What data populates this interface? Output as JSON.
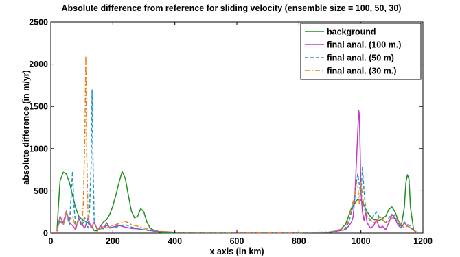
{
  "chart_data": {
    "type": "line",
    "title": "Absolute difference from reference for sliding velocity (ensemble size = 100, 50, 30)",
    "xlabel": "x axis (in km)",
    "ylabel": "absolute difference (in m/yr)",
    "xlim": [
      0,
      1200
    ],
    "ylim": [
      0,
      2500
    ],
    "xticks": [
      "0",
      "200",
      "400",
      "600",
      "800",
      "1000",
      "1200"
    ],
    "yticks": [
      "0",
      "500",
      "1000",
      "1500",
      "2000",
      "2500"
    ],
    "legend_position": "top-right",
    "grid": false,
    "series": [
      {
        "name": "background",
        "color": "#1f8f1f",
        "dash": "solid",
        "x": [
          20,
          25,
          30,
          40,
          50,
          60,
          70,
          80,
          90,
          100,
          110,
          120,
          130,
          140,
          150,
          160,
          170,
          180,
          190,
          200,
          210,
          220,
          230,
          240,
          250,
          260,
          270,
          280,
          290,
          300,
          310,
          320,
          330,
          340,
          350,
          360,
          400,
          600,
          800,
          900,
          930,
          950,
          960,
          970,
          980,
          990,
          1000,
          1010,
          1020,
          1030,
          1040,
          1060,
          1080,
          1090,
          1100,
          1110,
          1120,
          1130,
          1140,
          1145,
          1150,
          1155,
          1160,
          1170,
          1180
        ],
        "y": [
          30,
          350,
          620,
          720,
          700,
          600,
          450,
          300,
          200,
          160,
          140,
          120,
          90,
          30,
          25,
          80,
          130,
          160,
          220,
          320,
          450,
          600,
          730,
          650,
          450,
          260,
          180,
          200,
          290,
          250,
          130,
          60,
          40,
          20,
          10,
          5,
          4,
          4,
          4,
          8,
          30,
          100,
          200,
          300,
          350,
          400,
          390,
          330,
          250,
          200,
          160,
          150,
          200,
          280,
          310,
          250,
          150,
          80,
          300,
          600,
          690,
          640,
          300,
          40,
          5
        ]
      },
      {
        "name": "final anal. (100 m.)",
        "color": "#c836c8",
        "dash": "solid",
        "x": [
          20,
          30,
          40,
          50,
          60,
          70,
          80,
          90,
          100,
          110,
          120,
          130,
          140,
          150,
          160,
          170,
          180,
          190,
          200,
          220,
          240,
          260,
          280,
          300,
          320,
          340,
          400,
          600,
          800,
          900,
          950,
          960,
          970,
          975,
          980,
          985,
          990,
          993,
          995,
          998,
          1000,
          1005,
          1010,
          1015,
          1020,
          1030,
          1040,
          1050,
          1060,
          1070,
          1080,
          1090,
          1100,
          1110,
          1120,
          1130,
          1140,
          1150,
          1160,
          1180
        ],
        "y": [
          20,
          200,
          120,
          260,
          120,
          90,
          40,
          180,
          100,
          60,
          180,
          60,
          130,
          40,
          80,
          50,
          120,
          60,
          70,
          90,
          70,
          55,
          50,
          40,
          30,
          20,
          10,
          5,
          5,
          10,
          40,
          80,
          130,
          200,
          400,
          800,
          1200,
          1450,
          1400,
          900,
          500,
          250,
          150,
          250,
          120,
          60,
          80,
          150,
          60,
          80,
          40,
          120,
          220,
          170,
          90,
          60,
          120,
          80,
          60,
          10
        ]
      },
      {
        "name": "final anal. (50 m)",
        "color": "#1a96c8",
        "dash": "5,3",
        "x": [
          20,
          30,
          40,
          50,
          60,
          65,
          70,
          75,
          80,
          90,
          100,
          110,
          120,
          125,
          130,
          133,
          136,
          140,
          150,
          160,
          170,
          180,
          200,
          220,
          240,
          260,
          280,
          300,
          320,
          340,
          360,
          400,
          600,
          800,
          900,
          950,
          960,
          970,
          980,
          985,
          990,
          1000,
          1005,
          1010,
          1015,
          1020,
          1030,
          1040,
          1050,
          1060,
          1070,
          1080,
          1090,
          1100,
          1110,
          1120,
          1130,
          1140,
          1150,
          1160,
          1170,
          1180
        ],
        "y": [
          40,
          150,
          90,
          230,
          100,
          400,
          730,
          300,
          100,
          150,
          80,
          180,
          60,
          300,
          800,
          1700,
          900,
          120,
          40,
          60,
          50,
          90,
          60,
          80,
          100,
          70,
          50,
          40,
          30,
          20,
          15,
          10,
          5,
          5,
          10,
          50,
          120,
          250,
          400,
          600,
          700,
          450,
          780,
          500,
          300,
          200,
          150,
          200,
          250,
          180,
          150,
          120,
          180,
          220,
          200,
          120,
          60,
          130,
          100,
          80,
          30,
          5
        ]
      },
      {
        "name": "final anal. (30 m.)",
        "color": "#ee7f1a",
        "dash": "7,3,2,3",
        "x": [
          20,
          30,
          40,
          50,
          60,
          70,
          80,
          90,
          100,
          105,
          110,
          113,
          116,
          120,
          125,
          130,
          140,
          150,
          160,
          170,
          180,
          200,
          220,
          240,
          260,
          280,
          300,
          320,
          340,
          360,
          400,
          600,
          800,
          900,
          950,
          960,
          970,
          980,
          985,
          990,
          995,
          1000,
          1010,
          1020,
          1030,
          1040,
          1050,
          1060,
          1070,
          1080,
          1090,
          1100,
          1110,
          1120,
          1130,
          1140,
          1150,
          1160,
          1170,
          1180
        ],
        "y": [
          30,
          180,
          100,
          250,
          150,
          200,
          70,
          150,
          90,
          350,
          1200,
          2100,
          900,
          200,
          120,
          80,
          100,
          50,
          40,
          80,
          60,
          90,
          110,
          140,
          100,
          80,
          60,
          40,
          30,
          20,
          10,
          5,
          5,
          15,
          60,
          150,
          300,
          450,
          600,
          550,
          350,
          600,
          300,
          200,
          160,
          120,
          140,
          200,
          160,
          120,
          140,
          180,
          170,
          150,
          100,
          60,
          80,
          60,
          30,
          5
        ]
      }
    ]
  }
}
